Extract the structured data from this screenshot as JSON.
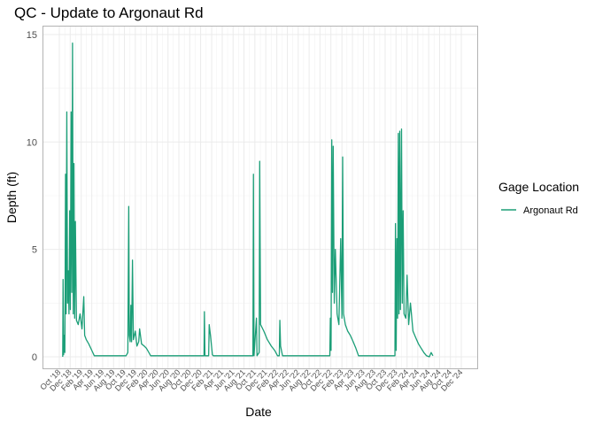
{
  "chart_data": {
    "type": "line",
    "title": "QC - Update to Argonaut Rd",
    "xlabel": "Date",
    "ylabel": "Depth (ft)",
    "ylim": [
      0,
      15
    ],
    "y_ticks": [
      0,
      5,
      10,
      15
    ],
    "x_tick_labels": [
      "Oct '18",
      "Dec '18",
      "Feb '19",
      "Apr '19",
      "Jun '19",
      "Aug '19",
      "Oct '19",
      "Dec '19",
      "Feb '20",
      "Apr '20",
      "Jun '20",
      "Aug '20",
      "Oct '20",
      "Dec '20",
      "Feb '21",
      "Apr '21",
      "Jun '21",
      "Aug '21",
      "Oct '21",
      "Dec '21",
      "Feb '22",
      "Apr '22",
      "Jun '22",
      "Aug '22",
      "Oct '22",
      "Dec '22",
      "Feb '23",
      "Apr '23",
      "Jun '23",
      "Aug '23",
      "Oct '23",
      "Dec '23",
      "Feb '24",
      "Apr '24",
      "Jun '24",
      "Aug '24",
      "Oct '24",
      "Dec '24"
    ],
    "grid": true,
    "legend_position": "right",
    "legend_title": "Gage Location",
    "series": [
      {
        "name": "Argonaut Rd",
        "color": "#1b9e77",
        "points": [
          [
            "2018-10-20",
            0
          ],
          [
            "2018-10-22",
            3.6
          ],
          [
            "2018-10-25",
            0.1
          ],
          [
            "2018-10-28",
            1.0
          ],
          [
            "2018-11-01",
            0.2
          ],
          [
            "2018-11-05",
            8.5
          ],
          [
            "2018-11-08",
            2.0
          ],
          [
            "2018-11-12",
            11.4
          ],
          [
            "2018-11-16",
            2.5
          ],
          [
            "2018-11-20",
            4.0
          ],
          [
            "2018-11-24",
            2.0
          ],
          [
            "2018-11-28",
            6.8
          ],
          [
            "2018-12-02",
            2.2
          ],
          [
            "2018-12-06",
            11.4
          ],
          [
            "2018-12-10",
            3.0
          ],
          [
            "2018-12-14",
            14.6
          ],
          [
            "2018-12-18",
            2.0
          ],
          [
            "2018-12-22",
            9.0
          ],
          [
            "2018-12-26",
            1.8
          ],
          [
            "2018-12-30",
            6.3
          ],
          [
            "2019-01-05",
            1.7
          ],
          [
            "2019-01-15",
            1.5
          ],
          [
            "2019-01-25",
            2.0
          ],
          [
            "2019-02-05",
            1.3
          ],
          [
            "2019-02-15",
            2.8
          ],
          [
            "2019-02-20",
            1.0
          ],
          [
            "2019-03-01",
            0.8
          ],
          [
            "2019-03-15",
            0.6
          ],
          [
            "2019-04-01",
            0.3
          ],
          [
            "2019-04-15",
            0.05
          ],
          [
            "2019-10-10",
            0.05
          ],
          [
            "2019-10-20",
            0.2
          ],
          [
            "2019-10-25",
            7.0
          ],
          [
            "2019-10-28",
            1.0
          ],
          [
            "2019-11-02",
            0.7
          ],
          [
            "2019-11-06",
            2.4
          ],
          [
            "2019-11-10",
            0.7
          ],
          [
            "2019-11-15",
            4.5
          ],
          [
            "2019-11-20",
            0.8
          ],
          [
            "2019-12-01",
            1.2
          ],
          [
            "2019-12-10",
            0.5
          ],
          [
            "2019-12-20",
            0.7
          ],
          [
            "2019-12-25",
            1.3
          ],
          [
            "2020-01-05",
            0.6
          ],
          [
            "2020-01-20",
            0.5
          ],
          [
            "2020-02-01",
            0.4
          ],
          [
            "2020-02-15",
            0.2
          ],
          [
            "2020-02-25",
            0.05
          ],
          [
            "2020-12-20",
            0.05
          ],
          [
            "2020-12-22",
            2.1
          ],
          [
            "2020-12-25",
            0.05
          ],
          [
            "2021-01-15",
            0.05
          ],
          [
            "2021-01-18",
            1.5
          ],
          [
            "2021-01-25",
            1.0
          ],
          [
            "2021-02-05",
            0.1
          ],
          [
            "2021-02-10",
            0.05
          ],
          [
            "2021-09-20",
            0.05
          ],
          [
            "2021-09-23",
            8.5
          ],
          [
            "2021-09-26",
            0.05
          ],
          [
            "2021-10-10",
            1.8
          ],
          [
            "2021-10-13",
            0.05
          ],
          [
            "2021-10-25",
            0.2
          ],
          [
            "2021-10-28",
            9.1
          ],
          [
            "2021-11-02",
            1.5
          ],
          [
            "2021-11-20",
            1.2
          ],
          [
            "2021-12-10",
            0.8
          ],
          [
            "2022-01-01",
            0.5
          ],
          [
            "2022-01-20",
            0.3
          ],
          [
            "2022-02-05",
            0.05
          ],
          [
            "2022-02-15",
            0.05
          ],
          [
            "2022-02-18",
            1.7
          ],
          [
            "2022-02-22",
            0.5
          ],
          [
            "2022-03-05",
            0.05
          ],
          [
            "2022-11-25",
            0.05
          ],
          [
            "2022-11-28",
            1.8
          ],
          [
            "2022-12-02",
            0.3
          ],
          [
            "2022-12-06",
            10.1
          ],
          [
            "2022-12-10",
            3.0
          ],
          [
            "2022-12-14",
            9.8
          ],
          [
            "2022-12-20",
            2.5
          ],
          [
            "2022-12-26",
            5.0
          ],
          [
            "2023-01-05",
            2.0
          ],
          [
            "2023-01-15",
            1.5
          ],
          [
            "2023-01-25",
            5.5
          ],
          [
            "2023-02-01",
            1.8
          ],
          [
            "2023-02-05",
            9.3
          ],
          [
            "2023-02-10",
            2.0
          ],
          [
            "2023-02-20",
            1.5
          ],
          [
            "2023-03-05",
            1.2
          ],
          [
            "2023-03-20",
            1.0
          ],
          [
            "2023-04-05",
            0.7
          ],
          [
            "2023-04-20",
            0.4
          ],
          [
            "2023-05-05",
            0.05
          ],
          [
            "2023-11-25",
            0.05
          ],
          [
            "2023-11-28",
            6.2
          ],
          [
            "2023-12-02",
            0.3
          ],
          [
            "2023-12-06",
            5.5
          ],
          [
            "2023-12-10",
            1.8
          ],
          [
            "2023-12-14",
            10.4
          ],
          [
            "2023-12-18",
            2.0
          ],
          [
            "2023-12-22",
            10.5
          ],
          [
            "2023-12-26",
            2.2
          ],
          [
            "2024-01-01",
            10.6
          ],
          [
            "2024-01-05",
            2.5
          ],
          [
            "2024-01-10",
            6.8
          ],
          [
            "2024-01-15",
            2.0
          ],
          [
            "2024-01-25",
            1.8
          ],
          [
            "2024-02-01",
            3.8
          ],
          [
            "2024-02-10",
            1.5
          ],
          [
            "2024-02-20",
            2.5
          ],
          [
            "2024-03-05",
            1.2
          ],
          [
            "2024-03-20",
            0.9
          ],
          [
            "2024-04-05",
            0.6
          ],
          [
            "2024-04-20",
            0.4
          ],
          [
            "2024-05-05",
            0.2
          ],
          [
            "2024-05-20",
            0.05
          ],
          [
            "2024-06-05",
            0.0
          ],
          [
            "2024-06-15",
            0.2
          ],
          [
            "2024-06-25",
            0.05
          ]
        ]
      }
    ]
  }
}
